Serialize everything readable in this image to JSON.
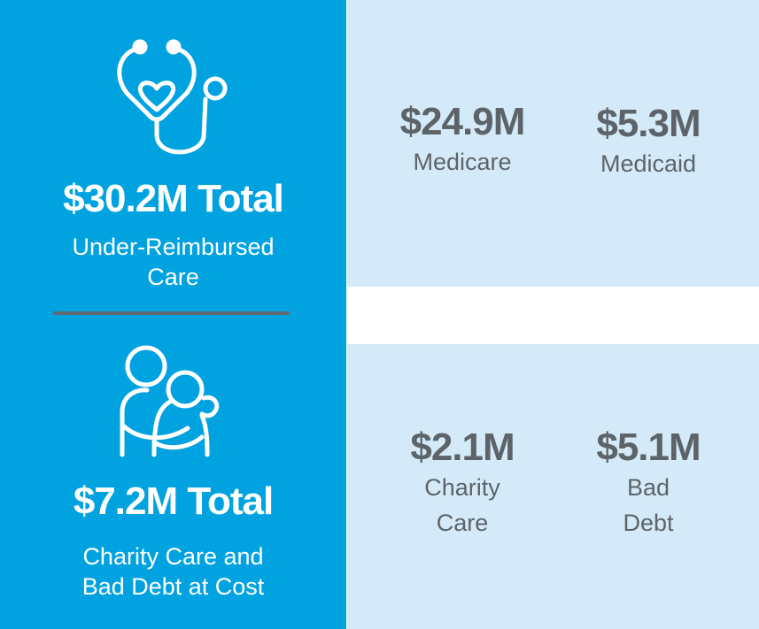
{
  "colors": {
    "left_bg": "#00a2e0",
    "panel_bg": "#d5eaf8",
    "divider": "#5f6a72",
    "stat_text": "#5d6469"
  },
  "section_top": {
    "icon": "stethoscope-heart-icon",
    "total": "$30.2M Total",
    "subtitle_line1": "Under-Reimbursed",
    "subtitle_line2": "Care",
    "stats": [
      {
        "amount": "$24.9M",
        "label": "Medicare"
      },
      {
        "amount": "$5.3M",
        "label": "Medicaid"
      }
    ]
  },
  "section_bottom": {
    "icon": "embracing-people-icon",
    "total": "$7.2M Total",
    "subtitle_line1": "Charity Care and",
    "subtitle_line2": "Bad Debt at Cost",
    "stats": [
      {
        "amount": "$2.1M",
        "label": "Charity\nCare"
      },
      {
        "amount": "$5.1M",
        "label": "Bad\nDebt"
      }
    ]
  }
}
